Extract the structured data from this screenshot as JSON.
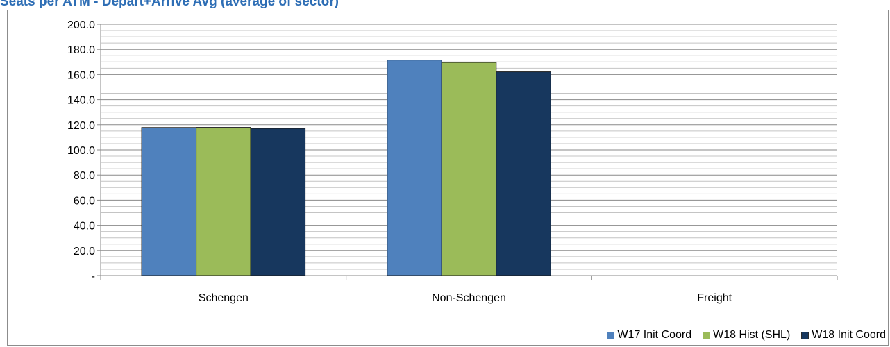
{
  "title": "Seats per ATM - Depart+Arrive Avg (average of sector)",
  "chart_data": {
    "type": "bar",
    "title": "Seats per ATM - Depart+Arrive Avg (average of sector)",
    "categories": [
      "Schengen",
      "Non-Schengen",
      "Freight"
    ],
    "series": [
      {
        "name": "W17 Init Coord",
        "values": [
          117.8,
          171.5,
          0
        ],
        "color": "#4f81bd"
      },
      {
        "name": "W18 Hist (SHL)",
        "values": [
          117.9,
          169.6,
          0
        ],
        "color": "#9bbb59"
      },
      {
        "name": "W18 Init Coord",
        "values": [
          117.1,
          162.1,
          0
        ],
        "color": "#17375e"
      }
    ],
    "ylim": [
      0,
      200
    ],
    "y_ticks": [
      "-",
      "20.0",
      "40.0",
      "60.0",
      "80.0",
      "100.0",
      "120.0",
      "140.0",
      "160.0",
      "180.0",
      "200.0"
    ],
    "xlabel": "",
    "ylabel": "",
    "grid": true,
    "legend_position": "bottom-right"
  }
}
